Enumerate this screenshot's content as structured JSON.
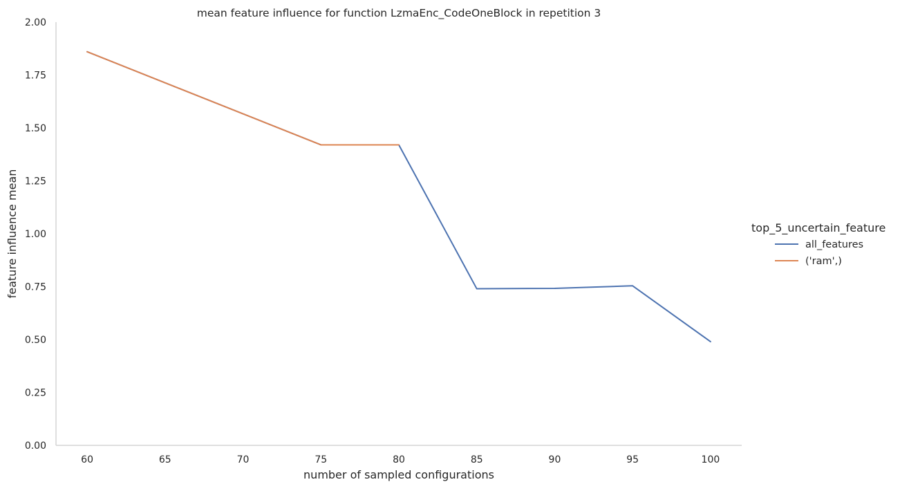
{
  "chart_data": {
    "type": "line",
    "title": "mean feature influence for function LzmaEnc_CodeOneBlock in repetition 3",
    "xlabel": "number of sampled configurations",
    "ylabel": "feature influence mean",
    "xlim": [
      58,
      102
    ],
    "ylim": [
      0,
      2
    ],
    "xticks": [
      60,
      65,
      70,
      75,
      80,
      85,
      90,
      95,
      100
    ],
    "yticks": [
      0.0,
      0.25,
      0.5,
      0.75,
      1.0,
      1.25,
      1.5,
      1.75,
      2.0
    ],
    "xtick_labels": [
      "60",
      "65",
      "70",
      "75",
      "80",
      "85",
      "90",
      "95",
      "100"
    ],
    "ytick_labels": [
      "0.00",
      "0.25",
      "0.50",
      "0.75",
      "1.00",
      "1.25",
      "1.50",
      "1.75",
      "2.00"
    ],
    "grid": false,
    "legend": {
      "title": "top_5_uncertain_feature",
      "placement": "right"
    },
    "series": [
      {
        "name": "all_features",
        "color": "#4c72b0",
        "x": [
          60,
          75,
          80,
          85,
          90,
          95,
          100
        ],
        "y": [
          1.86,
          1.42,
          1.42,
          0.74,
          0.742,
          0.754,
          0.49
        ]
      },
      {
        "name": "('ram',)",
        "color": "#dd8452",
        "x": [
          60,
          75,
          80
        ],
        "y": [
          1.86,
          1.42,
          1.42
        ]
      }
    ]
  }
}
